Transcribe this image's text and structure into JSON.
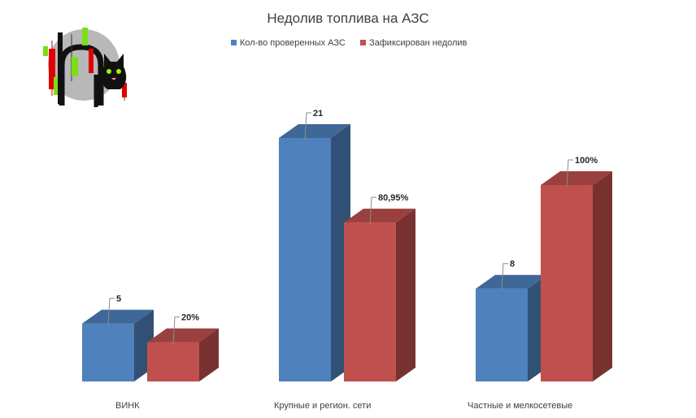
{
  "chart_data": {
    "type": "bar",
    "title": "Недолив топлива на АЗС",
    "categories": [
      "ВИНК",
      "Крупные и регион. сети",
      "Частные и мелкосетевые"
    ],
    "series": [
      {
        "name": "Кол-во проверенных АЗС",
        "values": [
          5,
          21,
          8
        ],
        "labels": [
          "5",
          "21",
          "8"
        ],
        "color": "#4F81BD"
      },
      {
        "name": "Зафиксирован недолив",
        "values": [
          20,
          80.95,
          100
        ],
        "labels": [
          "20%",
          "80,95%",
          "100%"
        ],
        "color": "#C0504D"
      }
    ],
    "legend_position": "top",
    "grid": false,
    "style": "3d-column"
  },
  "logo": {
    "icon": "cat-candlestick-logo-icon"
  }
}
